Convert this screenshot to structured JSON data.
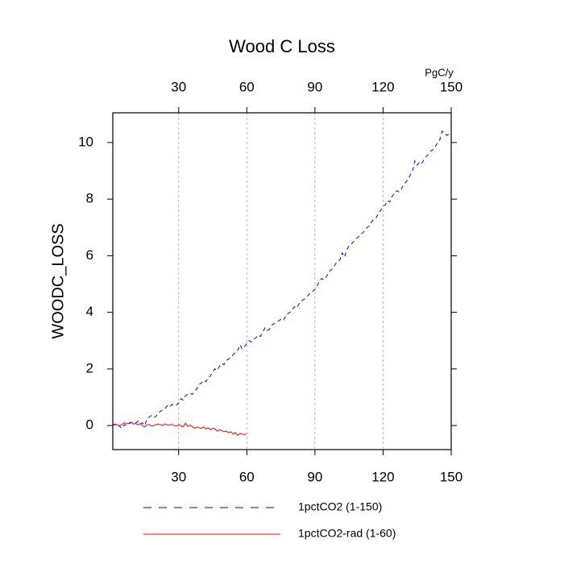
{
  "chart_data": {
    "type": "line",
    "title": "Wood C Loss",
    "ylabel": "WOODC_LOSS",
    "x2label": "PgC/y",
    "xlim": [
      1,
      150
    ],
    "ylim": [
      -0.85,
      11.05
    ],
    "xticks": [
      30,
      60,
      90,
      120,
      150
    ],
    "yticks": [
      0,
      2,
      4,
      6,
      8,
      10
    ],
    "xtick_color": "#ff0000",
    "x2tick_color": "#0000ff",
    "grid": true,
    "x": [
      1,
      2,
      3,
      4,
      5,
      6,
      7,
      8,
      9,
      10,
      11,
      12,
      13,
      14,
      15,
      16,
      17,
      18,
      19,
      20,
      21,
      22,
      23,
      24,
      25,
      26,
      27,
      28,
      29,
      30,
      31,
      32,
      33,
      34,
      35,
      36,
      37,
      38,
      39,
      40,
      41,
      42,
      43,
      44,
      45,
      46,
      47,
      48,
      49,
      50,
      51,
      52,
      53,
      54,
      55,
      56,
      57,
      58,
      59,
      60,
      61,
      62,
      63,
      64,
      65,
      66,
      67,
      68,
      69,
      70,
      71,
      72,
      73,
      74,
      75,
      76,
      77,
      78,
      79,
      80,
      81,
      82,
      83,
      84,
      85,
      86,
      87,
      88,
      89,
      90,
      91,
      92,
      93,
      94,
      95,
      96,
      97,
      98,
      99,
      100,
      101,
      102,
      103,
      104,
      105,
      106,
      107,
      108,
      109,
      110,
      111,
      112,
      113,
      114,
      115,
      116,
      117,
      118,
      119,
      120,
      121,
      122,
      123,
      124,
      125,
      126,
      127,
      128,
      129,
      130,
      131,
      132,
      133,
      134,
      135,
      136,
      137,
      138,
      139,
      140,
      141,
      142,
      143,
      144,
      145,
      146,
      147,
      148,
      149,
      150
    ],
    "series": [
      {
        "name": "1pctCO2 (1-150)",
        "color": "#0000ff",
        "dash": "5,4",
        "values": [
          0.05,
          0.02,
          0.08,
          -0.03,
          -0.1,
          0.03,
          0.0,
          0.06,
          0.1,
          0.12,
          0.08,
          0.15,
          0.05,
          0.1,
          0.0,
          0.2,
          0.3,
          0.35,
          0.28,
          0.32,
          0.45,
          0.5,
          0.55,
          0.6,
          0.7,
          0.65,
          0.75,
          0.7,
          0.72,
          0.8,
          0.95,
          0.9,
          1.05,
          1.1,
          1.15,
          1.1,
          1.2,
          1.3,
          1.45,
          1.5,
          1.6,
          1.55,
          1.7,
          1.75,
          1.9,
          2.0,
          1.95,
          2.1,
          2.2,
          2.15,
          2.3,
          2.35,
          2.4,
          2.5,
          2.6,
          2.65,
          2.85,
          2.7,
          2.8,
          2.9,
          3.0,
          2.95,
          3.05,
          3.1,
          3.2,
          3.15,
          3.3,
          3.45,
          3.35,
          3.4,
          3.55,
          3.6,
          3.65,
          3.7,
          3.75,
          3.7,
          3.85,
          3.95,
          4.0,
          4.1,
          4.2,
          4.15,
          4.3,
          4.4,
          4.45,
          4.5,
          4.6,
          4.7,
          4.75,
          4.8,
          4.95,
          5.1,
          5.2,
          5.15,
          5.25,
          5.4,
          5.5,
          5.55,
          5.7,
          5.8,
          5.85,
          6.1,
          5.95,
          6.2,
          6.35,
          6.4,
          6.5,
          6.6,
          6.65,
          6.75,
          6.8,
          6.9,
          7.0,
          7.05,
          7.2,
          7.3,
          7.35,
          7.5,
          7.6,
          7.75,
          7.8,
          7.95,
          7.9,
          8.1,
          8.2,
          8.3,
          8.25,
          8.35,
          8.5,
          8.6,
          8.7,
          8.85,
          9.0,
          9.35,
          9.2,
          9.3,
          9.25,
          9.4,
          9.5,
          9.6,
          9.7,
          9.75,
          9.85,
          10.0,
          10.1,
          10.4,
          10.35,
          10.25,
          10.3,
          10.35
        ]
      },
      {
        "name": "1pctCO2-rad (1-60)",
        "color": "#ff0000",
        "dash": "none",
        "values": [
          0.0,
          0.05,
          0.02,
          -0.02,
          0.04,
          0.1,
          0.06,
          0.08,
          0.12,
          0.05,
          0.08,
          0.03,
          0.06,
          0.0,
          -0.05,
          0.02,
          0.04,
          -0.02,
          0.0,
          0.03,
          0.05,
          0.02,
          0.0,
          0.06,
          0.02,
          0.01,
          0.04,
          0.0,
          -0.02,
          0.02,
          0.0,
          -0.05,
          0.08,
          -0.03,
          0.02,
          -0.04,
          -0.1,
          -0.05,
          -0.08,
          -0.1,
          -0.05,
          -0.12,
          -0.08,
          -0.15,
          -0.1,
          -0.12,
          -0.2,
          -0.15,
          -0.18,
          -0.22,
          -0.2,
          -0.25,
          -0.22,
          -0.3,
          -0.25,
          -0.35,
          -0.28,
          -0.3,
          -0.32,
          -0.3,
          null,
          null,
          null,
          null,
          null,
          null,
          null,
          null,
          null,
          null,
          null,
          null,
          null,
          null,
          null,
          null,
          null,
          null,
          null,
          null,
          null,
          null,
          null,
          null,
          null,
          null,
          null,
          null,
          null,
          null,
          null,
          null,
          null,
          null,
          null,
          null,
          null,
          null,
          null,
          null,
          null,
          null,
          null,
          null,
          null,
          null,
          null,
          null,
          null,
          null,
          null,
          null,
          null,
          null,
          null,
          null,
          null,
          null,
          null,
          null,
          null,
          null,
          null,
          null,
          null,
          null,
          null,
          null,
          null,
          null,
          null,
          null,
          null,
          null,
          null,
          null,
          null,
          null,
          null,
          null,
          null,
          null,
          null,
          null,
          null,
          null,
          null,
          null,
          null,
          null
        ]
      }
    ]
  }
}
